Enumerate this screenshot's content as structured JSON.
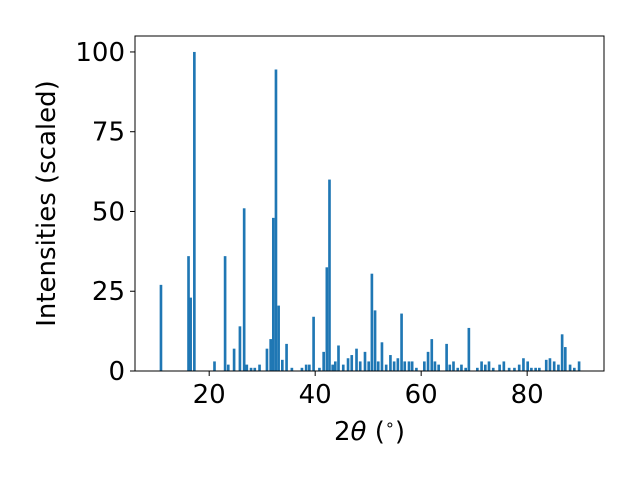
{
  "chart_data": {
    "type": "bar",
    "title": "",
    "xlabel_prefix": "2",
    "xlabel_symbol": "θ",
    "xlabel_suffix": " (",
    "xlabel_degree": "∘",
    "xlabel_close": ")",
    "ylabel": "Intensities (scaled)",
    "xlim": [
      6.0,
      94.5
    ],
    "ylim": [
      0,
      105
    ],
    "xticks": [
      20,
      40,
      60,
      80
    ],
    "yticks": [
      0,
      25,
      50,
      75,
      100
    ],
    "bar_color": "#1f77b4",
    "bar_width": 0.5,
    "x": [
      10.9,
      16.1,
      16.5,
      17.2,
      21.0,
      23.0,
      23.6,
      24.7,
      25.8,
      26.6,
      27.1,
      27.9,
      28.6,
      29.5,
      30.9,
      31.6,
      32.1,
      32.6,
      33.1,
      33.8,
      34.6,
      35.6,
      37.5,
      38.3,
      38.9,
      39.7,
      40.8,
      41.6,
      42.2,
      42.7,
      43.3,
      43.8,
      44.4,
      45.3,
      46.2,
      46.9,
      47.8,
      48.5,
      49.4,
      50.1,
      50.7,
      51.3,
      51.9,
      52.6,
      53.4,
      54.2,
      54.9,
      55.6,
      56.3,
      56.9,
      57.7,
      58.3,
      59.1,
      60.6,
      61.3,
      62.0,
      62.6,
      63.3,
      64.8,
      65.4,
      66.1,
      66.9,
      67.6,
      68.4,
      69.0,
      70.6,
      71.4,
      72.1,
      72.8,
      73.6,
      74.8,
      75.6,
      76.6,
      77.6,
      78.5,
      79.3,
      80.1,
      80.8,
      81.6,
      82.3,
      83.6,
      84.3,
      85.1,
      85.9,
      86.6,
      87.2,
      88.1,
      88.9,
      89.8
    ],
    "values": [
      27,
      36,
      23,
      100,
      3,
      36,
      2,
      7,
      14,
      51,
      2,
      1,
      1,
      2,
      7,
      10,
      48,
      94.5,
      20.5,
      3.5,
      8.5,
      1,
      1,
      2,
      2,
      17,
      1,
      6,
      32.5,
      60,
      2,
      3,
      8,
      2,
      4,
      5,
      7,
      3,
      6,
      3,
      30.5,
      19,
      3,
      9,
      2,
      5,
      3,
      4,
      18,
      3,
      3,
      3,
      1,
      3,
      6,
      10,
      3,
      2,
      8.5,
      2,
      3,
      1,
      2,
      1,
      13.5,
      1,
      3,
      2,
      3,
      1,
      2,
      3,
      1,
      1,
      2,
      4,
      3,
      1,
      1,
      1,
      3.5,
      4,
      3,
      2,
      11.5,
      7.5,
      2,
      1,
      3
    ]
  }
}
